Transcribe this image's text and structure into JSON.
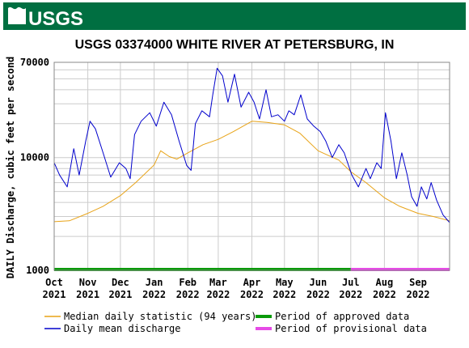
{
  "header": {
    "logo_text": "USGS",
    "logo_bg": "#006f41"
  },
  "chart_data": {
    "type": "line",
    "title": "USGS 03374000 WHITE RIVER AT PETERSBURG, IN",
    "ylabel": "DAILY Discharge, cubic feet per second",
    "xlabel": "",
    "yscale": "log",
    "ylim": [
      1000,
      70000
    ],
    "xlim": [
      "2021-10-01",
      "2022-09-30"
    ],
    "grid": true,
    "y_tick_labels": [
      "1000",
      "10000",
      "70000"
    ],
    "x_tick_labels": [
      {
        "month": "Oct",
        "year": "2021"
      },
      {
        "month": "Nov",
        "year": "2021"
      },
      {
        "month": "Dec",
        "year": "2021"
      },
      {
        "month": "Jan",
        "year": "2022"
      },
      {
        "month": "Feb",
        "year": "2022"
      },
      {
        "month": "Mar",
        "year": "2022"
      },
      {
        "month": "Apr",
        "year": "2022"
      },
      {
        "month": "May",
        "year": "2022"
      },
      {
        "month": "Jun",
        "year": "2022"
      },
      {
        "month": "Jul",
        "year": "2022"
      },
      {
        "month": "Aug",
        "year": "2022"
      },
      {
        "month": "Sep",
        "year": "2022"
      }
    ],
    "series": [
      {
        "name": "Median daily statistic (94 years)",
        "color": "#e8a317",
        "points": [
          [
            "2021-10-01",
            2700
          ],
          [
            "2021-10-15",
            2750
          ],
          [
            "2021-11-01",
            3200
          ],
          [
            "2021-11-15",
            3700
          ],
          [
            "2021-12-01",
            4600
          ],
          [
            "2021-12-15",
            6000
          ],
          [
            "2022-01-01",
            8600
          ],
          [
            "2022-01-07",
            11500
          ],
          [
            "2022-01-15",
            10200
          ],
          [
            "2022-01-22",
            9700
          ],
          [
            "2022-02-01",
            11000
          ],
          [
            "2022-02-15",
            13000
          ],
          [
            "2022-03-01",
            14500
          ],
          [
            "2022-03-15",
            17000
          ],
          [
            "2022-04-01",
            21000
          ],
          [
            "2022-04-15",
            20500
          ],
          [
            "2022-05-01",
            19500
          ],
          [
            "2022-05-15",
            16500
          ],
          [
            "2022-06-01",
            11500
          ],
          [
            "2022-06-10",
            10500
          ],
          [
            "2022-06-20",
            9500
          ],
          [
            "2022-07-01",
            7500
          ],
          [
            "2022-07-15",
            6000
          ],
          [
            "2022-08-01",
            4400
          ],
          [
            "2022-08-15",
            3700
          ],
          [
            "2022-09-01",
            3200
          ],
          [
            "2022-09-15",
            3000
          ],
          [
            "2022-09-30",
            2750
          ]
        ]
      },
      {
        "name": "Daily mean discharge",
        "color": "#0000cc",
        "points": [
          [
            "2021-10-01",
            9000
          ],
          [
            "2021-10-06",
            7000
          ],
          [
            "2021-10-13",
            5500
          ],
          [
            "2021-10-19",
            12000
          ],
          [
            "2021-10-24",
            7000
          ],
          [
            "2021-10-30",
            14000
          ],
          [
            "2021-11-03",
            21000
          ],
          [
            "2021-11-08",
            18000
          ],
          [
            "2021-11-15",
            11000
          ],
          [
            "2021-11-22",
            6700
          ],
          [
            "2021-11-30",
            9000
          ],
          [
            "2021-12-06",
            8000
          ],
          [
            "2021-12-10",
            6500
          ],
          [
            "2021-12-14",
            16000
          ],
          [
            "2021-12-20",
            21000
          ],
          [
            "2021-12-28",
            25000
          ],
          [
            "2022-01-03",
            19000
          ],
          [
            "2022-01-10",
            31000
          ],
          [
            "2022-01-17",
            24000
          ],
          [
            "2022-01-24",
            14000
          ],
          [
            "2022-01-31",
            8500
          ],
          [
            "2022-02-04",
            7700
          ],
          [
            "2022-02-08",
            20000
          ],
          [
            "2022-02-14",
            26000
          ],
          [
            "2022-02-21",
            23000
          ],
          [
            "2022-02-24",
            36000
          ],
          [
            "2022-02-28",
            62000
          ],
          [
            "2022-03-05",
            53000
          ],
          [
            "2022-03-10",
            31000
          ],
          [
            "2022-03-16",
            55000
          ],
          [
            "2022-03-22",
            28000
          ],
          [
            "2022-03-29",
            38000
          ],
          [
            "2022-04-03",
            31000
          ],
          [
            "2022-04-08",
            22000
          ],
          [
            "2022-04-14",
            40000
          ],
          [
            "2022-04-19",
            23000
          ],
          [
            "2022-04-25",
            24000
          ],
          [
            "2022-05-01",
            21000
          ],
          [
            "2022-05-05",
            26000
          ],
          [
            "2022-05-10",
            24000
          ],
          [
            "2022-05-16",
            36000
          ],
          [
            "2022-05-22",
            22000
          ],
          [
            "2022-05-28",
            19000
          ],
          [
            "2022-06-03",
            17000
          ],
          [
            "2022-06-08",
            14000
          ],
          [
            "2022-06-14",
            10000
          ],
          [
            "2022-06-20",
            13000
          ],
          [
            "2022-06-25",
            11000
          ],
          [
            "2022-07-02",
            7000
          ],
          [
            "2022-07-08",
            5500
          ],
          [
            "2022-07-15",
            8000
          ],
          [
            "2022-07-19",
            6500
          ],
          [
            "2022-07-25",
            9000
          ],
          [
            "2022-07-29",
            8000
          ],
          [
            "2022-08-02",
            25000
          ],
          [
            "2022-08-07",
            14000
          ],
          [
            "2022-08-12",
            6500
          ],
          [
            "2022-08-17",
            11000
          ],
          [
            "2022-08-22",
            7000
          ],
          [
            "2022-08-26",
            4500
          ],
          [
            "2022-08-31",
            3700
          ],
          [
            "2022-09-04",
            5500
          ],
          [
            "2022-09-09",
            4300
          ],
          [
            "2022-09-13",
            6000
          ],
          [
            "2022-09-18",
            4200
          ],
          [
            "2022-09-24",
            3100
          ],
          [
            "2022-09-30",
            2650
          ]
        ]
      }
    ],
    "period_bar": [
      {
        "label": "Period of approved data",
        "color": "#0a9a0a",
        "from": "2021-10-01",
        "to": "2022-07-01"
      },
      {
        "label": "Period of provisional data",
        "color": "#e64be6",
        "from": "2022-07-01",
        "to": "2022-09-30"
      }
    ]
  }
}
